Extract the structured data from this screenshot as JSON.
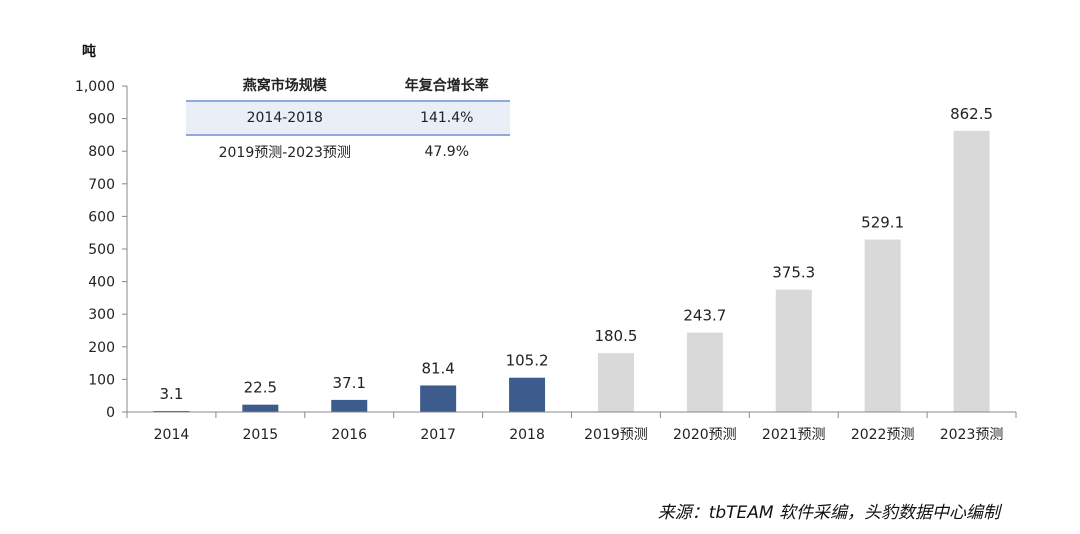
{
  "chart_data": {
    "type": "bar",
    "ylabel": "吨",
    "ylim": [
      0,
      1000
    ],
    "yticks": [
      0,
      100,
      200,
      300,
      400,
      500,
      600,
      700,
      800,
      900,
      1000
    ],
    "ytick_labels": [
      "0",
      "100",
      "200",
      "300",
      "400",
      "500",
      "600",
      "700",
      "800",
      "900",
      "1,000"
    ],
    "categories": [
      "2014",
      "2015",
      "2016",
      "2017",
      "2018",
      "2019预测",
      "2020预测",
      "2021预测",
      "2022预测",
      "2023预测"
    ],
    "values": [
      3.1,
      22.5,
      37.1,
      81.4,
      105.2,
      180.5,
      243.7,
      375.3,
      529.1,
      862.5
    ],
    "value_labels": [
      "3.1",
      "22.5",
      "37.1",
      "81.4",
      "105.2",
      "180.5",
      "243.7",
      "375.3",
      "529.1",
      "862.5"
    ],
    "colors": {
      "actual": "#3d5b8c",
      "forecast": "#d9d9d9"
    },
    "forecast_from_index": 5,
    "grid": false
  },
  "table": {
    "headers": [
      "燕窝市场规模",
      "年复合增长率"
    ],
    "rows": [
      [
        "2014-2018",
        "141.4%"
      ],
      [
        "2019预测-2023预测",
        "47.9%"
      ]
    ]
  },
  "source": "来源：tbTEAM 软件采编，头豹数据中心编制"
}
